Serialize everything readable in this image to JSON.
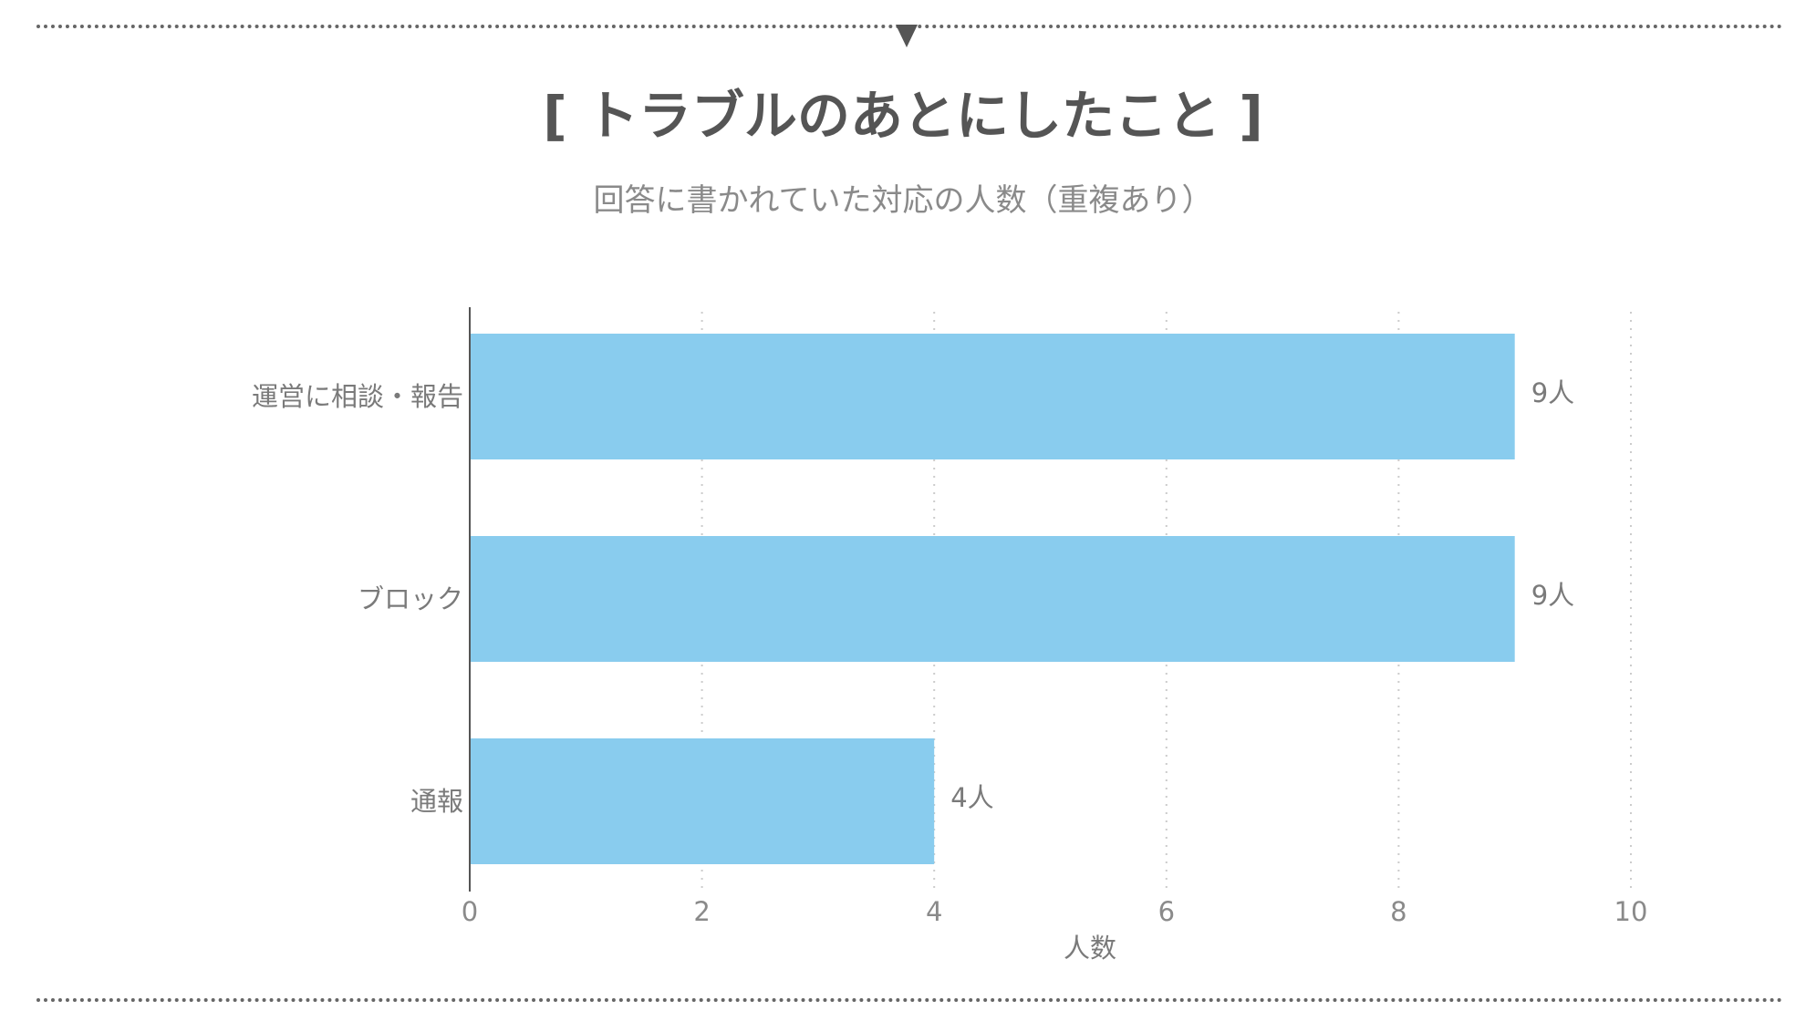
{
  "header": {
    "marker_icon": "down-triangle-icon",
    "title": "[ トラブルのあとにしたこと ]",
    "subtitle": "回答に書かれていた対応の人数（重複あり）"
  },
  "chart_data": {
    "type": "bar",
    "orientation": "horizontal",
    "title": "[ トラブルのあとにしたこと ]",
    "subtitle": "回答に書かれていた対応の人数（重複あり）",
    "categories": [
      "運営に相談・報告",
      "ブロック",
      "通報"
    ],
    "values": [
      9,
      9,
      4
    ],
    "value_labels": [
      "9人",
      "9人",
      "4人"
    ],
    "xlabel": "人数",
    "ylabel": "",
    "xlim": [
      0,
      10
    ],
    "x_ticks": [
      "0",
      "2",
      "4",
      "6",
      "8",
      "10"
    ],
    "grid": "vertical dotted",
    "bar_color": "#89CCEE",
    "axis_color": "#555555",
    "text_color": "#7a7a7a"
  }
}
